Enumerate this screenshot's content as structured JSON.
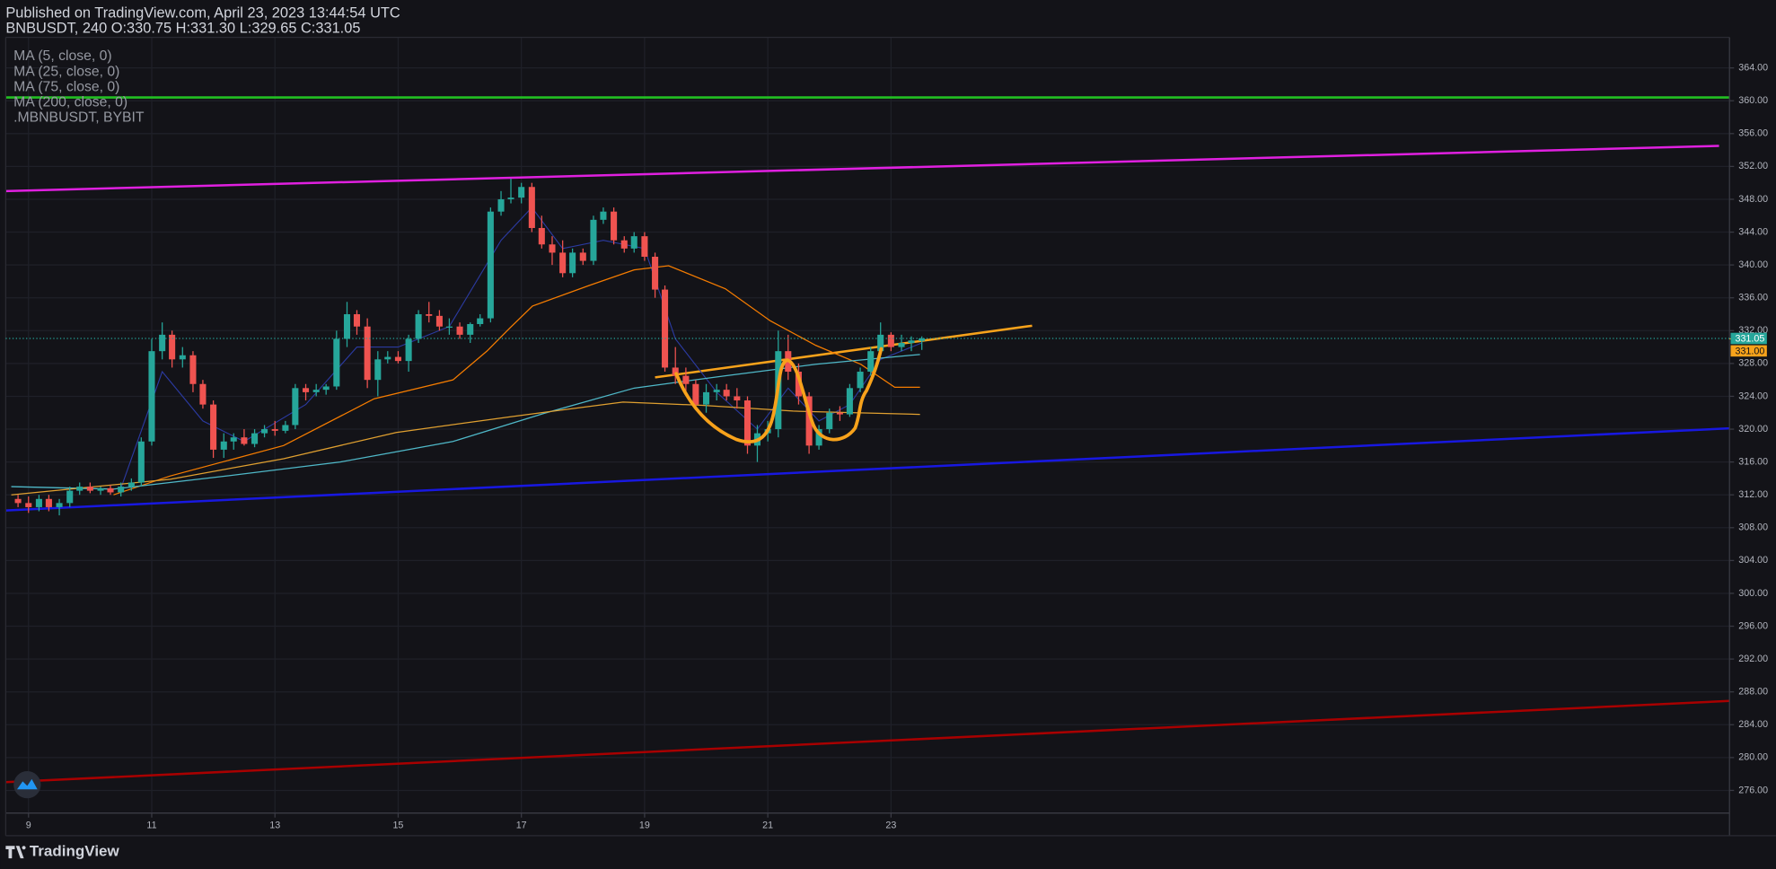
{
  "chart_data": {
    "type": "candlestick",
    "title": "Published on TradingView.com, April 23, 2023 13:44:54 UTC",
    "subtitle": "BNBUSDT, 240 O:330.75 H:331.30 L:329.65 C:331.05",
    "brand": "TradingView",
    "up_color": "#26a69a",
    "down_color": "#ef5350",
    "grid": true,
    "xlim": [
      8.63,
      36.61
    ],
    "xticks": [
      9,
      11,
      13,
      15,
      17,
      19,
      21,
      23
    ],
    "ylim": [
      273.24,
      367.72
    ],
    "yticks": [
      {
        "value": 276,
        "label": "276.00"
      },
      {
        "value": 280,
        "label": "280.00"
      },
      {
        "value": 284,
        "label": "284.00"
      },
      {
        "value": 288,
        "label": "288.00"
      },
      {
        "value": 292,
        "label": "292.00"
      },
      {
        "value": 296,
        "label": "296.00"
      },
      {
        "value": 300,
        "label": "300.00"
      },
      {
        "value": 304,
        "label": "304.00"
      },
      {
        "value": 308,
        "label": "308.00"
      },
      {
        "value": 312,
        "label": "312.00"
      },
      {
        "value": 316,
        "label": "316.00"
      },
      {
        "value": 320,
        "label": "320.00"
      },
      {
        "value": 324,
        "label": "324.00"
      },
      {
        "value": 328,
        "label": "328.00"
      },
      {
        "value": 332,
        "label": "332.00"
      },
      {
        "value": 336,
        "label": "336.00"
      },
      {
        "value": 340,
        "label": "340.00"
      },
      {
        "value": 344,
        "label": "344.00"
      },
      {
        "value": 348,
        "label": "348.00"
      },
      {
        "value": 352,
        "label": "352.00"
      },
      {
        "value": 356,
        "label": "356.00"
      },
      {
        "value": 360,
        "label": "360.00"
      },
      {
        "value": 364,
        "label": "364.00"
      }
    ],
    "x": [
      8.83,
      9,
      9.17,
      9.33,
      9.5,
      9.67,
      9.83,
      10,
      10.17,
      10.33,
      10.5,
      10.67,
      10.83,
      11,
      11.17,
      11.33,
      11.5,
      11.67,
      11.83,
      12,
      12.17,
      12.33,
      12.5,
      12.67,
      12.83,
      13,
      13.17,
      13.33,
      13.5,
      13.67,
      13.83,
      14,
      14.17,
      14.33,
      14.5,
      14.67,
      14.83,
      15,
      15.17,
      15.33,
      15.5,
      15.67,
      15.83,
      16,
      16.17,
      16.33,
      16.5,
      16.67,
      16.83,
      17,
      17.17,
      17.33,
      17.5,
      17.67,
      17.83,
      18,
      18.17,
      18.33,
      18.5,
      18.67,
      18.83,
      19,
      19.17,
      19.33,
      19.5,
      19.67,
      19.83,
      20,
      20.17,
      20.33,
      20.5,
      20.67,
      20.83,
      21,
      21.17,
      21.33,
      21.5,
      21.67,
      21.83,
      22,
      22.17,
      22.33,
      22.5,
      22.67,
      22.83,
      23,
      23.17,
      23.33,
      23.5
    ],
    "open": [
      311.5,
      311,
      310.5,
      311.5,
      310.5,
      311,
      312.5,
      313,
      312.5,
      312.8,
      312.3,
      313,
      313.5,
      318.5,
      329.5,
      331.5,
      328.5,
      329,
      325.5,
      323,
      317.5,
      318.5,
      319,
      318.2,
      319.5,
      320,
      319.8,
      320.5,
      325,
      324.5,
      324.8,
      325.2,
      331,
      334,
      332.5,
      326,
      328.5,
      328.8,
      328.3,
      331,
      334,
      333.8,
      332.5,
      332.5,
      331.5,
      332.8,
      333.5,
      346.5,
      348,
      348.2,
      349.5,
      344.5,
      342.5,
      341.5,
      339,
      341.5,
      340.5,
      345.5,
      346.5,
      343,
      342,
      343.5,
      341,
      337,
      327.5,
      326.5,
      325.5,
      323,
      324.5,
      324.8,
      324,
      323.5,
      318,
      319.5,
      320,
      329.5,
      327,
      324,
      318,
      320,
      322,
      321.8,
      325,
      327,
      329.5,
      331.5,
      330,
      330.5,
      330.75
    ],
    "high": [
      312,
      311.8,
      312,
      312,
      311.5,
      313,
      313.5,
      313.5,
      313,
      313.2,
      313.5,
      314,
      319,
      331,
      333,
      332,
      330,
      329.5,
      326,
      323.5,
      319.5,
      319.5,
      320,
      320,
      320.5,
      321,
      321,
      325.5,
      325.5,
      325.5,
      325.5,
      332,
      335.5,
      334.5,
      333.5,
      329.5,
      329.5,
      329.5,
      331.5,
      334.5,
      335.5,
      334.5,
      333.5,
      333,
      333,
      334,
      347,
      349,
      350.5,
      350,
      350,
      346,
      343.5,
      343,
      342,
      342,
      346,
      347,
      347,
      343.5,
      344,
      344,
      341.5,
      337.5,
      330,
      327.5,
      326,
      325.5,
      325.5,
      325.5,
      325,
      324,
      320.5,
      321,
      332,
      331.5,
      328,
      324.5,
      320.5,
      322.5,
      322.8,
      325.5,
      327.5,
      330,
      333,
      331.8,
      331.5,
      331.3,
      331.3
    ],
    "low": [
      310.5,
      309.8,
      310,
      310,
      309.5,
      310.5,
      312,
      312.2,
      312,
      312,
      311.8,
      312.5,
      313,
      318,
      328.5,
      327.5,
      327.5,
      324.5,
      322.5,
      316.5,
      316.5,
      317.5,
      318,
      317.8,
      319,
      319.2,
      319.5,
      320,
      323.5,
      324,
      324.2,
      324.8,
      330,
      331.5,
      325,
      324,
      328,
      328,
      327,
      330.5,
      333,
      332,
      331.5,
      331,
      330.5,
      332.5,
      333,
      346,
      347.5,
      347.5,
      344,
      342,
      340,
      338.5,
      338.5,
      340,
      340,
      345,
      342.5,
      341.5,
      341.5,
      340.5,
      336,
      327,
      325.5,
      324.5,
      322.5,
      322,
      323.5,
      323.5,
      322.5,
      317,
      316,
      318.5,
      319,
      326,
      323,
      317,
      317.5,
      319.5,
      321,
      321.5,
      324.5,
      326.5,
      329,
      329.5,
      329.5,
      329.5,
      329.65
    ],
    "close": [
      311,
      310.5,
      311.5,
      310.5,
      311,
      312.5,
      313,
      312.5,
      312.8,
      312.3,
      313,
      313.5,
      318.5,
      329.5,
      331.5,
      328.5,
      329,
      325.5,
      323,
      317.5,
      318.5,
      319,
      318.2,
      319.5,
      320,
      319.8,
      320.5,
      325,
      324.5,
      324.8,
      325.2,
      331,
      334,
      332.5,
      326,
      328.5,
      328.8,
      328.3,
      331,
      334,
      333.8,
      332.5,
      332.5,
      331.5,
      332.8,
      333.5,
      346.5,
      348,
      348.2,
      349.5,
      344.5,
      342.5,
      341.5,
      339,
      341.5,
      340.5,
      345.5,
      346.5,
      343,
      342,
      343.5,
      341,
      337,
      327.5,
      326.5,
      325.5,
      323,
      324.5,
      324.8,
      324,
      323.5,
      318,
      319.5,
      320,
      329.5,
      327,
      324,
      318,
      320,
      322,
      321.8,
      325,
      327,
      329.5,
      331.5,
      330,
      330.5,
      330.8,
      331.05
    ],
    "series": [
      {
        "name": "MA (5, close, 0)",
        "color": "#2b3aa0",
        "x": [
          10.5,
          11.17,
          11.83,
          12.5,
          13.5,
          14.33,
          15,
          15.83,
          16.67,
          17.17,
          17.67,
          18.33,
          19,
          19.5,
          20.17,
          20.83,
          21.33,
          21.83,
          22.33,
          22.83,
          23.5
        ],
        "values": [
          312.8,
          327,
          321,
          318.5,
          323,
          330,
          330,
          332.5,
          343,
          347,
          342,
          343,
          342,
          331,
          324.5,
          320,
          325,
          321,
          323,
          328.5,
          330.5
        ]
      },
      {
        "name": "MA (25, close, 0)",
        "color": "#f57c00",
        "x": [
          10.38,
          11.3,
          13.14,
          14.61,
          15.89,
          16.44,
          16.81,
          17.18,
          18.1,
          18.83,
          19.39,
          20.31,
          21.04,
          21.78,
          22.51,
          23.06,
          23.47
        ],
        "values": [
          312,
          314.3,
          318,
          323.7,
          326,
          329.5,
          332.3,
          335,
          337.5,
          339.4,
          339.9,
          337.1,
          333.2,
          330.2,
          327.9,
          325.1,
          325.1
        ]
      },
      {
        "name": "MA (75, close, 0)",
        "color": "#4fb8c8",
        "x": [
          8.72,
          10.38,
          12.22,
          14.06,
          15.89,
          17.36,
          18.83,
          20.31,
          21.78,
          23.47
        ],
        "values": [
          313,
          312.7,
          314.3,
          316,
          318.5,
          321.9,
          325,
          326.5,
          327.9,
          329.1
        ]
      },
      {
        "name": "MA (200, close, 0)",
        "color": "#e0a030",
        "x": [
          8.72,
          11.3,
          13.14,
          14.97,
          16.81,
          18.65,
          19.94,
          21.41,
          23.47
        ],
        "values": [
          312,
          313.9,
          316.4,
          319.6,
          321.5,
          323.3,
          322.9,
          322.2,
          321.8
        ]
      }
    ],
    "compare_symbol": ".MBNBUSDT, BYBIT",
    "drawings": [
      {
        "color": "#22c022",
        "x": [
          8.63,
          36.61
        ],
        "values": [
          360.4,
          360.4
        ]
      },
      {
        "color": "#e020e0",
        "x": [
          8.63,
          36.44
        ],
        "values": [
          349,
          354.5
        ]
      },
      {
        "color": "#1818e0",
        "x": [
          8.63,
          36.61
        ],
        "values": [
          310.1,
          320.1
        ]
      },
      {
        "color": "#a80000",
        "x": [
          8.63,
          36.61
        ],
        "values": [
          277,
          286.9
        ]
      },
      {
        "color": "#f7a21b",
        "x": [
          19.17,
          25.29
        ],
        "values": [
          326.3,
          332.6
        ]
      }
    ],
    "last_price": {
      "value": 331.05,
      "label": "331.05"
    },
    "alert_price": {
      "value": 331,
      "label": "331.00"
    }
  }
}
